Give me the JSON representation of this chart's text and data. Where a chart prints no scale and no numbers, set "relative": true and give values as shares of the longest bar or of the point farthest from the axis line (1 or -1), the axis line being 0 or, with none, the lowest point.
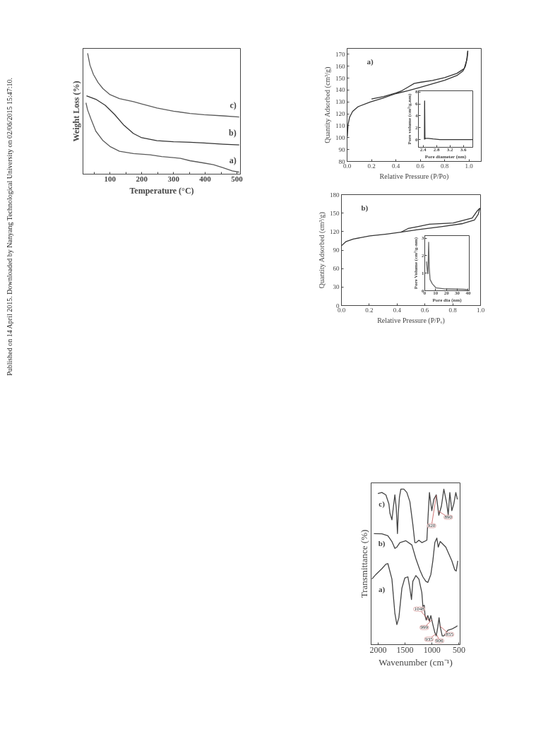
{
  "chart_data": [
    {
      "type": "line",
      "relative": true,
      "xlabel": "Temperature (°C)",
      "ylabel": "Weight Loss (%)",
      "xlim": [
        15,
        511
      ],
      "xticks": [
        {
          "value": 50,
          "label": null
        },
        100,
        {
          "value": 150,
          "label": null
        },
        200,
        {
          "value": 250,
          "label": null
        },
        300,
        {
          "value": 350,
          "label": null
        },
        400,
        {
          "value": 450,
          "label": null
        },
        500
      ],
      "annotations": [
        "Published on 14 April 2015. Downloaded by Nanyang Technological University on 02/06/2015 15:47:10."
      ],
      "series": [
        {
          "name": "a)",
          "color": "#5a5a5a",
          "x": [
            24.4,
            29.6,
            40.7,
            55.6,
            78,
            100,
            130,
            174,
            226,
            263,
            300,
            322,
            352,
            396,
            426,
            456,
            485,
            507
          ],
          "values": [
            0.59,
            0.531,
            0.453,
            0.355,
            0.277,
            0.229,
            0.189,
            0.17,
            0.16,
            0.145,
            0.137,
            0.131,
            0.111,
            0.092,
            0.078,
            0.053,
            0.027,
            0.016
          ]
        },
        {
          "name": "b)",
          "color": "#333333",
          "x": [
            26,
            55.6,
            85,
            115,
            144,
            174,
            200,
            248,
            300,
            352,
            396,
            456,
            507
          ],
          "values": [
            0.648,
            0.619,
            0.57,
            0.492,
            0.404,
            0.336,
            0.301,
            0.277,
            0.268,
            0.264,
            0.258,
            0.248,
            0.242
          ]
        },
        {
          "name": "c)",
          "color": "#5a5a5a",
          "x": [
            29.6,
            37,
            48,
            63,
            78,
            100,
            130,
            174,
            200,
            248,
            300,
            352,
            396,
            456,
            507
          ],
          "values": [
            1.0,
            0.902,
            0.824,
            0.756,
            0.707,
            0.658,
            0.625,
            0.6,
            0.58,
            0.547,
            0.521,
            0.502,
            0.492,
            0.482,
            0.473
          ]
        }
      ]
    },
    {
      "type": "line",
      "xlabel": "Relative Pressure (P/Po)",
      "ylabel": "Quantity Adsorbed (cm³/g)",
      "xlim": [
        0,
        1.1
      ],
      "ylim": [
        80,
        175
      ],
      "xticks": [
        {
          "value": 0,
          "label": "0.0"
        },
        0.2,
        0.4,
        0.6,
        0.8,
        {
          "value": 1,
          "label": "1.0"
        }
      ],
      "yticks": [
        80,
        90,
        100,
        110,
        120,
        130,
        140,
        150,
        160,
        170
      ],
      "annotations": [
        "a)"
      ],
      "series": [
        {
          "color": "#333333",
          "x": [
            0.002,
            0.008,
            0.02,
            0.045,
            0.09,
            0.19,
            0.29,
            0.4,
            0.5,
            0.6,
            0.7,
            0.8,
            0.9,
            0.95,
            0.97,
            0.985,
            0.99
          ],
          "values": [
            101,
            111,
            117,
            122,
            126,
            130,
            133,
            137,
            139.5,
            142.3,
            145.3,
            148.2,
            152.2,
            156,
            160,
            167,
            173
          ]
        },
        {
          "color": "#333333",
          "x": [
            0.99,
            0.98,
            0.96,
            0.9,
            0.8,
            0.7,
            0.6,
            0.55,
            0.5,
            0.45,
            0.4,
            0.3,
            0.2
          ],
          "values": [
            173,
            165,
            158,
            154,
            150.5,
            148,
            146.5,
            145.5,
            142.5,
            139.5,
            137.5,
            134.5,
            132.5
          ]
        }
      ]
    },
    {
      "type": "line",
      "xlabel": "Pore diameter (nm)",
      "ylabel": "Pore volume (cm³/g.nm)",
      "xlim": [
        2.26,
        3.88
      ],
      "ylim": [
        -1.3,
        8.2
      ],
      "xticks": [
        2.4,
        2.8,
        3.2,
        3.6
      ],
      "yticks": [
        0,
        2,
        4,
        6,
        8
      ],
      "series": [
        {
          "color": "#333333",
          "x": [
            2.44,
            2.445,
            2.455,
            2.47,
            2.55,
            2.7,
            2.9,
            3.3,
            3.88
          ],
          "values": [
            0,
            6.5,
            0.1,
            0.2,
            0.2,
            0.1,
            0,
            0,
            0
          ]
        }
      ]
    },
    {
      "type": "line",
      "xlabel": "Relative Pressure (P/Pₒ)",
      "ylabel": "Quantity Adsorbed (cm³/g)",
      "xlim": [
        0,
        1
      ],
      "ylim": [
        0,
        180
      ],
      "xticks": [
        {
          "value": 0,
          "label": "0.0"
        },
        0.2,
        0.4,
        0.6,
        0.8,
        {
          "value": 1,
          "label": "1.0"
        }
      ],
      "yticks": [
        0,
        30,
        60,
        90,
        120,
        150,
        180
      ],
      "annotations": [
        "b)"
      ],
      "series": [
        {
          "color": "#333333",
          "x": [
            0,
            0.034,
            0.085,
            0.205,
            0.325,
            0.427,
            0.547,
            0.718,
            0.872,
            0.957,
            0.983,
            0.995
          ],
          "values": [
            97,
            104,
            108,
            113,
            116,
            119,
            123,
            128,
            133,
            139,
            148,
            158
          ]
        },
        {
          "color": "#333333",
          "x": [
            0.995,
            0.974,
            0.94,
            0.803,
            0.632,
            0.547,
            0.479,
            0.427
          ],
          "values": [
            158,
            153,
            142,
            134,
            132,
            128,
            125,
            119
          ]
        }
      ]
    },
    {
      "type": "line",
      "xlabel": "Pore dia (nm)",
      "ylabel": "Pore Volume (cm³/g-nm)",
      "xlim": [
        0,
        41
      ],
      "ylim": [
        0,
        3.15
      ],
      "xticks": [
        0,
        10,
        20,
        30,
        40
      ],
      "yticks": [
        0,
        1,
        2,
        3
      ],
      "series": [
        {
          "color": "#666666",
          "x": [
            1.6,
            2.4,
            2.9,
            3.6,
            4.1,
            4.9,
            7,
            10.2,
            19.2,
            35.4,
            40
          ],
          "values": [
            1.67,
            1.09,
            0.97,
            2.77,
            1.35,
            0.64,
            0.39,
            0.17,
            0.1,
            0.08,
            0.06
          ]
        }
      ]
    },
    {
      "type": "line",
      "relative": true,
      "xlabel": "Wavenumber (cm⁻¹)",
      "ylabel": "Transmittance (%)",
      "xlim": [
        2130,
        480
      ],
      "xticks": [
        2000,
        1500,
        1000,
        500
      ],
      "annotations": [
        {
          "text": "890",
          "x": 890,
          "y": 0.86
        },
        {
          "text": "920",
          "x": 920,
          "y": 0.96
        },
        {
          "text": "1048",
          "x": 1048,
          "y": 0.151
        },
        {
          "text": "999",
          "x": 999,
          "y": 0.16
        },
        {
          "text": "935",
          "x": 935,
          "y": 0.067
        },
        {
          "text": "906",
          "x": 906,
          "y": 0.06
        },
        {
          "text": "855",
          "x": 855,
          "y": 0.12
        }
      ],
      "series": [
        {
          "name": "a)",
          "color": "#444444",
          "x": [
            2115,
            2041,
            1930,
            1856,
            1819,
            1744,
            1689,
            1652,
            1615,
            1559,
            1504,
            1448,
            1411,
            1381,
            1356,
            1300,
            1244,
            1189,
            1170,
            1144,
            1130,
            1107,
            1078,
            1048,
            1022,
            985,
            948,
            922,
            893,
            870,
            848,
            811,
            781,
            707,
            633,
            559,
            530
          ],
          "values": [
            0.422,
            0.451,
            0.488,
            0.517,
            0.521,
            0.422,
            0.202,
            0.129,
            0.173,
            0.363,
            0.429,
            0.436,
            0.363,
            0.29,
            0.407,
            0.444,
            0.422,
            0.334,
            0.246,
            0.253,
            0.187,
            0.158,
            0.187,
            0.151,
            0.187,
            0.129,
            0.078,
            0.056,
            0.114,
            0.173,
            0.114,
            0.056,
            0.056,
            0.092,
            0.1,
            0.114,
            0.122
          ]
        },
        {
          "name": "b)",
          "color": "#444444",
          "x": [
            2078,
            1930,
            1819,
            1744,
            1689,
            1652,
            1596,
            1485,
            1374,
            1300,
            1226,
            1170,
            1115,
            1078,
            1022,
            985,
            948,
            911,
            885,
            848,
            744,
            633,
            578,
            552,
            522
          ],
          "values": [
            0.714,
            0.712,
            0.7,
            0.663,
            0.619,
            0.627,
            0.656,
            0.668,
            0.641,
            0.553,
            0.48,
            0.436,
            0.407,
            0.4,
            0.451,
            0.539,
            0.656,
            0.685,
            0.627,
            0.663,
            0.627,
            0.539,
            0.48,
            0.473,
            0.539
          ]
        },
        {
          "name": "c)",
          "color": "#444444",
          "x": [
            2004,
            1930,
            1856,
            1800,
            1781,
            1744,
            1715,
            1689,
            1663,
            1641,
            1626,
            1604,
            1578,
            1522,
            1467,
            1411,
            1356,
            1319,
            1293,
            1244,
            1189,
            1096,
            1070,
            1048,
            1022,
            1004,
            967,
            922,
            874,
            826,
            781,
            726,
            700,
            670,
            633,
            596,
            559,
            530
          ],
          "values": [
            0.971,
            0.978,
            0.963,
            0.905,
            0.846,
            0.802,
            0.89,
            0.963,
            0.876,
            0.714,
            0.846,
            0.949,
            1.0,
            1.0,
            0.978,
            0.919,
            0.773,
            0.656,
            0.656,
            0.671,
            0.656,
            0.671,
            0.846,
            0.978,
            0.905,
            0.861,
            0.934,
            0.963,
            0.832,
            0.89,
            1.0,
            0.905,
            0.832,
            0.978,
            0.861,
            0.905,
            0.978,
            0.934
          ]
        }
      ]
    }
  ]
}
